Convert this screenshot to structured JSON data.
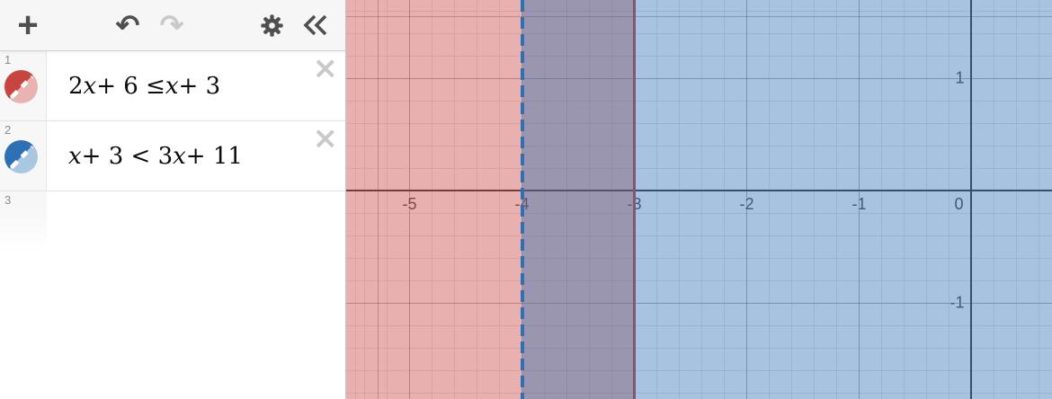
{
  "toolbar": {
    "add_glyph": "+",
    "undo_glyph": "↶",
    "redo_glyph": "↷",
    "collapse_icon": "double-chevron-left",
    "settings_icon": "gear"
  },
  "expression_list": {
    "rows": [
      {
        "number": "1",
        "expression": "2x + 6 ≤ x + 3",
        "color": "#c74440",
        "color_light": "#e8b3b0",
        "close_glyph": "×"
      },
      {
        "number": "2",
        "expression": "x + 3 < 3x + 11",
        "color": "#2d70b3",
        "color_light": "#aac7e2",
        "close_glyph": "×"
      },
      {
        "number": "3",
        "expression": ""
      }
    ]
  },
  "graph": {
    "axis_color": "#3a3a3a",
    "x_ticks": [
      {
        "label": "-5",
        "value": -5
      },
      {
        "label": "-4",
        "value": -4
      },
      {
        "label": "-3",
        "value": -3
      },
      {
        "label": "-2",
        "value": -2
      },
      {
        "label": "-1",
        "value": -1
      },
      {
        "label": "0",
        "value": 0
      }
    ],
    "y_ticks": [
      {
        "label": "1",
        "value": 1
      },
      {
        "label": "-1",
        "value": -1
      }
    ]
  },
  "chart_data": {
    "type": "region",
    "title": "",
    "xlabel": "",
    "ylabel": "",
    "x_visible_range": [
      -5.56,
      0.72
    ],
    "y_visible_range": [
      -1.86,
      1.7
    ],
    "grid": "on, major every 1 unit, minor every 0.2 unit",
    "x_tick_labels": [
      "-5",
      "-4",
      "-3",
      "-2",
      "-1",
      "0"
    ],
    "y_tick_labels": [
      "1",
      "-1"
    ],
    "series": [
      {
        "name": "2x + 6 ≤ x + 3",
        "solution": "x ≤ -3",
        "boundary_x": -3,
        "line_style": "solid",
        "shade_direction": "left",
        "color": "#c74440",
        "fill_alpha": 0.42
      },
      {
        "name": "x + 3 < 3x + 11",
        "solution": "x > -4",
        "boundary_x": -4,
        "line_style": "dashed",
        "shade_direction": "right",
        "color": "#2d70b3",
        "fill_alpha": 0.42
      }
    ]
  }
}
